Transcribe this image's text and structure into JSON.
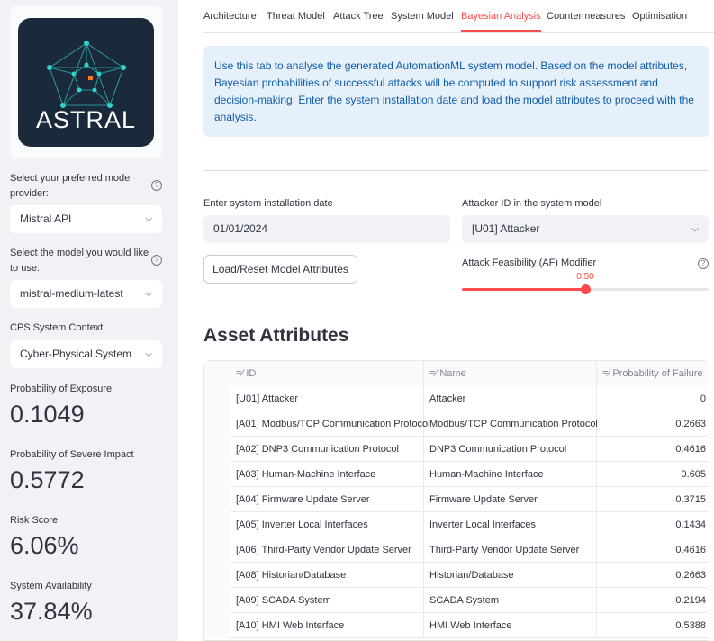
{
  "sidebar": {
    "logo_text": "ASTRAL",
    "provider_label": "Select your preferred model provider:",
    "provider_value": "Mistral API",
    "model_label": "Select the model you would like to use:",
    "model_value": "mistral-medium-latest",
    "context_label": "CPS System Context",
    "context_value": "Cyber-Physical System",
    "metrics": [
      {
        "label": "Probability of Exposure",
        "value": "0.1049"
      },
      {
        "label": "Probability of Severe Impact",
        "value": "0.5772"
      },
      {
        "label": "Risk Score",
        "value": "6.06%"
      },
      {
        "label": "System Availability",
        "value": "37.84%"
      }
    ]
  },
  "tabs": [
    "Architecture",
    "Threat Model",
    "Attack Tree",
    "System Model",
    "Bayesian Analysis",
    "Countermeasures",
    "Optimisation"
  ],
  "active_tab": "Bayesian Analysis",
  "info_text": "Use this tab to analyse the generated AutomationML system model. Based on the model attributes, Bayesian probabilities of successful attacks will be computed to support risk assessment and decision-making. Enter the system installation date and load the model attributes to proceed with the analysis.",
  "form": {
    "date_label": "Enter system installation date",
    "date_value": "01/01/2024",
    "attacker_label": "Attacker ID in the system model",
    "attacker_value": "[U01] Attacker",
    "load_button": "Load/Reset Model Attributes",
    "slider_label": "Attack Feasibility (AF) Modifier",
    "slider_value": "0.50",
    "slider_fraction": 0.5
  },
  "table": {
    "title": "Asset Attributes",
    "columns": [
      "ID",
      "Name",
      "Probability of Failure"
    ],
    "rows": [
      [
        "[U01] Attacker",
        "Attacker",
        "0"
      ],
      [
        "[A01] Modbus/TCP Communication Protocol",
        "Modbus/TCP Communication Protocol",
        "0.2663"
      ],
      [
        "[A02] DNP3 Communication Protocol",
        "DNP3 Communication Protocol",
        "0.4616"
      ],
      [
        "[A03] Human-Machine Interface",
        "Human-Machine Interface",
        "0.605"
      ],
      [
        "[A04] Firmware Update Server",
        "Firmware Update Server",
        "0.3715"
      ],
      [
        "[A05] Inverter Local Interfaces",
        "Inverter Local Interfaces",
        "0.1434"
      ],
      [
        "[A06] Third-Party Vendor Update Server",
        "Third-Party Vendor Update Server",
        "0.4616"
      ],
      [
        "[A08] Historian/Database",
        "Historian/Database",
        "0.2663"
      ],
      [
        "[A09] SCADA System",
        "SCADA System",
        "0.2194"
      ],
      [
        "[A10] HMI Web Interface",
        "HMI Web Interface",
        "0.5388"
      ]
    ]
  }
}
